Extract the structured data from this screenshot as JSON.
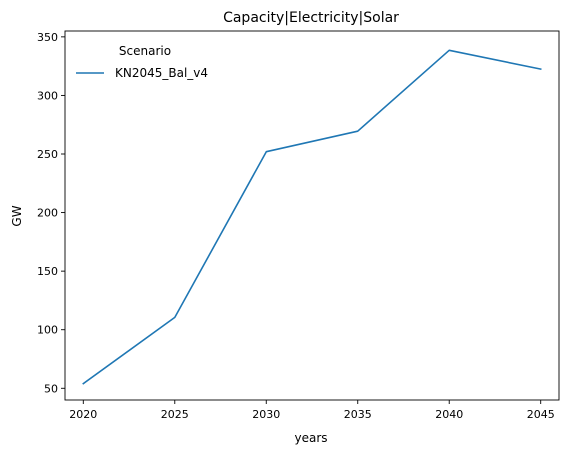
{
  "chart_data": {
    "type": "line",
    "title": "Capacity|Electricity|Solar",
    "xlabel": "years",
    "ylabel": "GW",
    "x": [
      2020,
      2025,
      2030,
      2035,
      2040,
      2045
    ],
    "xticks": [
      "2020",
      "2025",
      "2030",
      "2035",
      "2040",
      "2045"
    ],
    "yticks": [
      "50",
      "100",
      "150",
      "200",
      "250",
      "300",
      "350"
    ],
    "xlim": [
      2019,
      2046
    ],
    "ylim": [
      40,
      355
    ],
    "series": [
      {
        "name": "KN2045_Bal_v4",
        "values": [
          54,
          110.5,
          252,
          269.5,
          338.5,
          322.5
        ],
        "color": "#1f77b4"
      }
    ],
    "legend": {
      "title": "Scenario",
      "placement": "top-left"
    },
    "grid": false
  }
}
